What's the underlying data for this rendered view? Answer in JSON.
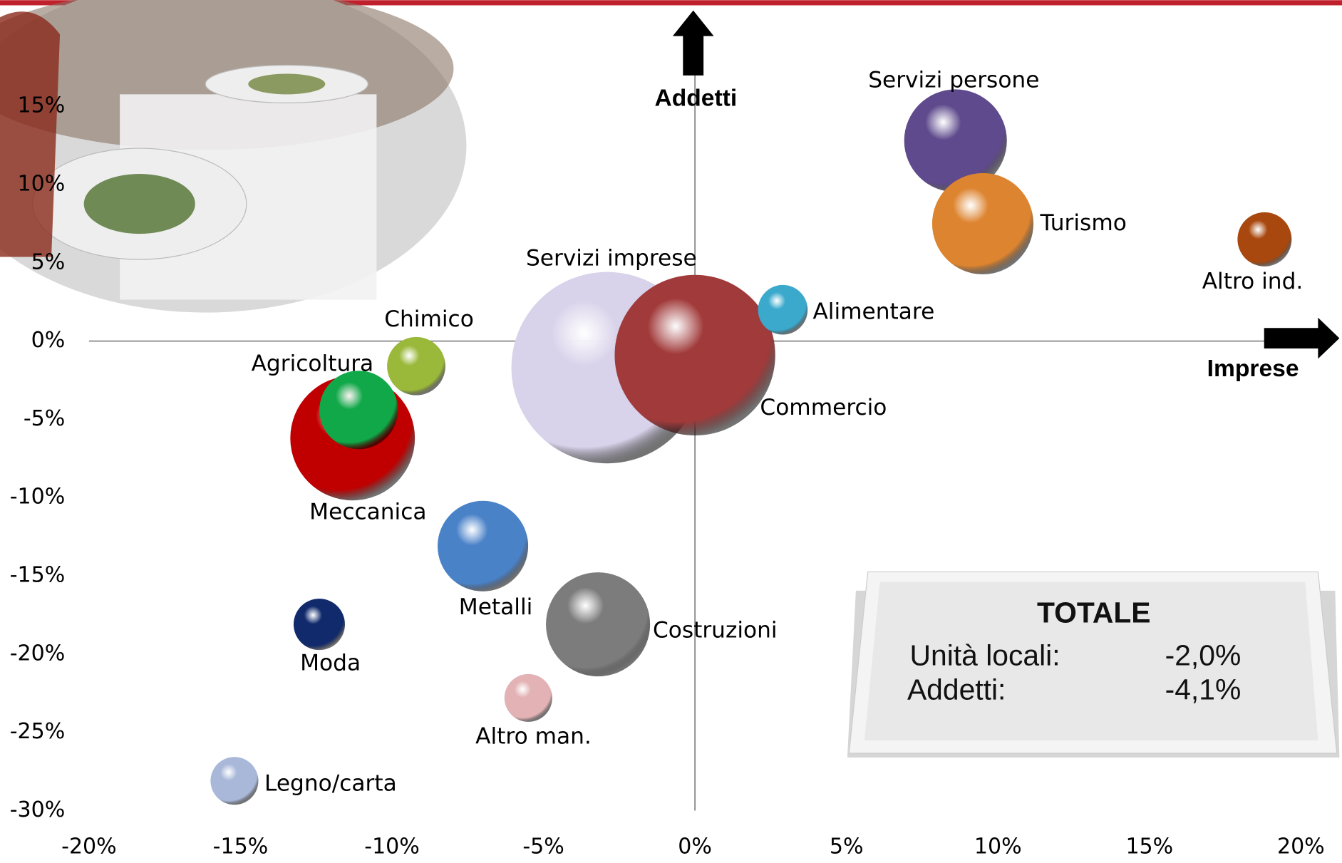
{
  "chart_data": {
    "type": "bubble",
    "x_label": "Imprese",
    "y_label": "Addetti",
    "categories": [
      "Servizi imprese",
      "Commercio",
      "Meccanica",
      "Agricoltura",
      "Chimico",
      "Alimentare",
      "Servizi persone",
      "Turismo",
      "Altro ind.",
      "Metalli",
      "Costruzioni",
      "Moda",
      "Altro man.",
      "Legno/carta"
    ],
    "x": [
      -2.9,
      0.0,
      -11.3,
      -11.1,
      -9.2,
      2.9,
      8.6,
      9.5,
      18.8,
      -7.0,
      -3.2,
      -12.4,
      -5.5,
      -15.2
    ],
    "values": [
      -1.7,
      -0.9,
      -6.2,
      -4.4,
      -1.6,
      2.0,
      12.8,
      7.5,
      6.5,
      -13.1,
      -18.1,
      -18.1,
      -22.8,
      -28.1
    ],
    "sizes": [
      125,
      88,
      53,
      21,
      11.6,
      8.4,
      36,
      35,
      10,
      28,
      37,
      9,
      7.8,
      7.8
    ],
    "colors": [
      "#d8d2ea",
      "#a13a3a",
      "#c00000",
      "#10a848",
      "#9ab83a",
      "#3aa9cc",
      "#5e4a8c",
      "#dd8430",
      "#a8480e",
      "#4a82c8",
      "#7c7c7c",
      "#102a6c",
      "#e2b2b4",
      "#a9b8d9"
    ],
    "xlim": [
      -20,
      20
    ],
    "xticks": [
      {
        "value": -20,
        "label": "-20%"
      },
      {
        "value": -15,
        "label": "-15%"
      },
      {
        "value": -10,
        "label": "-10%"
      },
      {
        "value": -5,
        "label": "-5%"
      },
      {
        "value": 0,
        "label": "0%"
      },
      {
        "value": 5,
        "label": "5%"
      },
      {
        "value": 10,
        "label": "10%"
      },
      {
        "value": 15,
        "label": "15%"
      },
      {
        "value": 20,
        "label": "20%"
      }
    ],
    "ylim": [
      -30,
      15
    ],
    "yticks": [
      {
        "value": -30,
        "label": "-30%"
      },
      {
        "value": -25,
        "label": "-25%"
      },
      {
        "value": -20,
        "label": "-20%"
      },
      {
        "value": -15,
        "label": "-15%"
      },
      {
        "value": -10,
        "label": "-10%"
      },
      {
        "value": -5,
        "label": "-5%"
      },
      {
        "value": 0,
        "label": "0%"
      },
      {
        "value": 5,
        "label": "5%"
      },
      {
        "value": 10,
        "label": "10%"
      },
      {
        "value": 15,
        "label": "15%"
      }
    ],
    "summary": {
      "title": "TOTALE",
      "rows": [
        [
          "Unità locali:",
          "-2,0%"
        ],
        [
          "Addetti:",
          "-4,1%"
        ]
      ]
    }
  }
}
